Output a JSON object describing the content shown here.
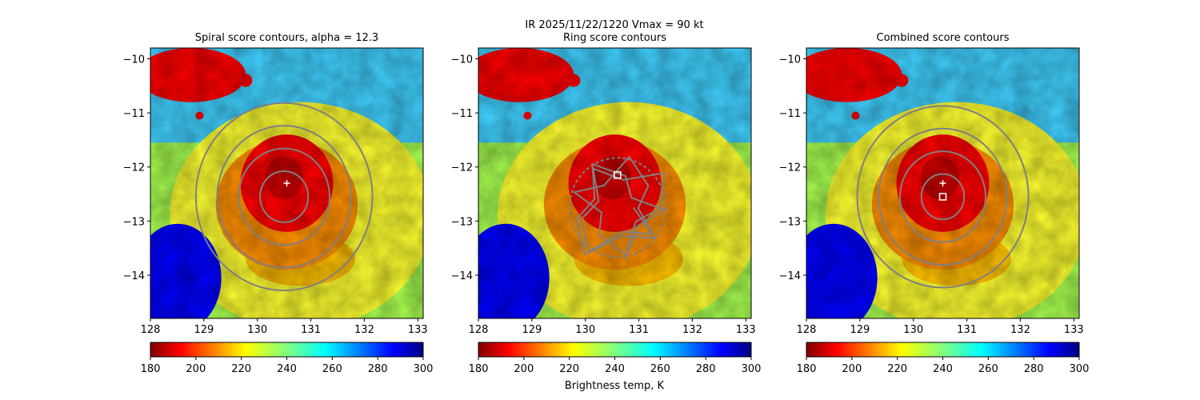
{
  "figure": {
    "suptitle_line1": "IR  2025/11/22/1220    Vmax = 90 kt",
    "colorbar_label": "Brightness temp, K"
  },
  "chart_data": [
    {
      "type": "heatmap",
      "title": "Spiral score contours, alpha = 12.3",
      "xlim": [
        128,
        133.1
      ],
      "ylim": [
        -14.8,
        -9.8
      ],
      "xticks": [
        "128",
        "129",
        "130",
        "131",
        "132",
        "133"
      ],
      "yticks": [
        "−10",
        "−11",
        "−12",
        "−13",
        "−14"
      ],
      "contour_center": [
        130.5,
        -12.55
      ],
      "contour_radii_deg": [
        0.45,
        0.85,
        1.25,
        1.65
      ],
      "marker_plus": [
        130.55,
        -12.3
      ],
      "marker_square": null,
      "colorbar": {
        "ticks": [
          "180",
          "200",
          "220",
          "240",
          "260",
          "280",
          "300"
        ],
        "range": [
          180,
          300
        ]
      }
    },
    {
      "type": "heatmap",
      "title": "Ring score contours",
      "xlim": [
        128,
        133.1
      ],
      "ylim": [
        -14.8,
        -9.8
      ],
      "xticks": [
        "128",
        "129",
        "130",
        "131",
        "132",
        "133"
      ],
      "yticks": [
        "−10",
        "−11",
        "−12",
        "−13",
        "−14"
      ],
      "contour_center": [
        130.6,
        -12.75
      ],
      "contour_radii_deg": [],
      "marker_plus": null,
      "marker_square": [
        130.6,
        -12.15
      ],
      "colorbar": {
        "ticks": [
          "180",
          "200",
          "220",
          "240",
          "260",
          "280",
          "300"
        ],
        "range": [
          180,
          300
        ]
      }
    },
    {
      "type": "heatmap",
      "title": "Combined score contours",
      "xlim": [
        128,
        133.1
      ],
      "ylim": [
        -14.8,
        -9.8
      ],
      "xticks": [
        "128",
        "129",
        "130",
        "131",
        "132",
        "133"
      ],
      "yticks": [
        "−10",
        "−11",
        "−12",
        "−13",
        "−14"
      ],
      "contour_center": [
        130.55,
        -12.55
      ],
      "contour_radii_deg": [
        0.4,
        0.8,
        1.2,
        1.6
      ],
      "marker_plus": [
        130.55,
        -12.3
      ],
      "marker_square": [
        130.55,
        -12.55
      ],
      "colorbar": {
        "ticks": [
          "180",
          "200",
          "220",
          "240",
          "260",
          "280",
          "300"
        ],
        "range": [
          180,
          300
        ]
      }
    }
  ],
  "colors": {
    "contour": "#808080",
    "cmap": [
      "#800000",
      "#ff0000",
      "#ff8000",
      "#ffff00",
      "#80ff80",
      "#00ffff",
      "#0080ff",
      "#0000ff",
      "#000080"
    ]
  }
}
